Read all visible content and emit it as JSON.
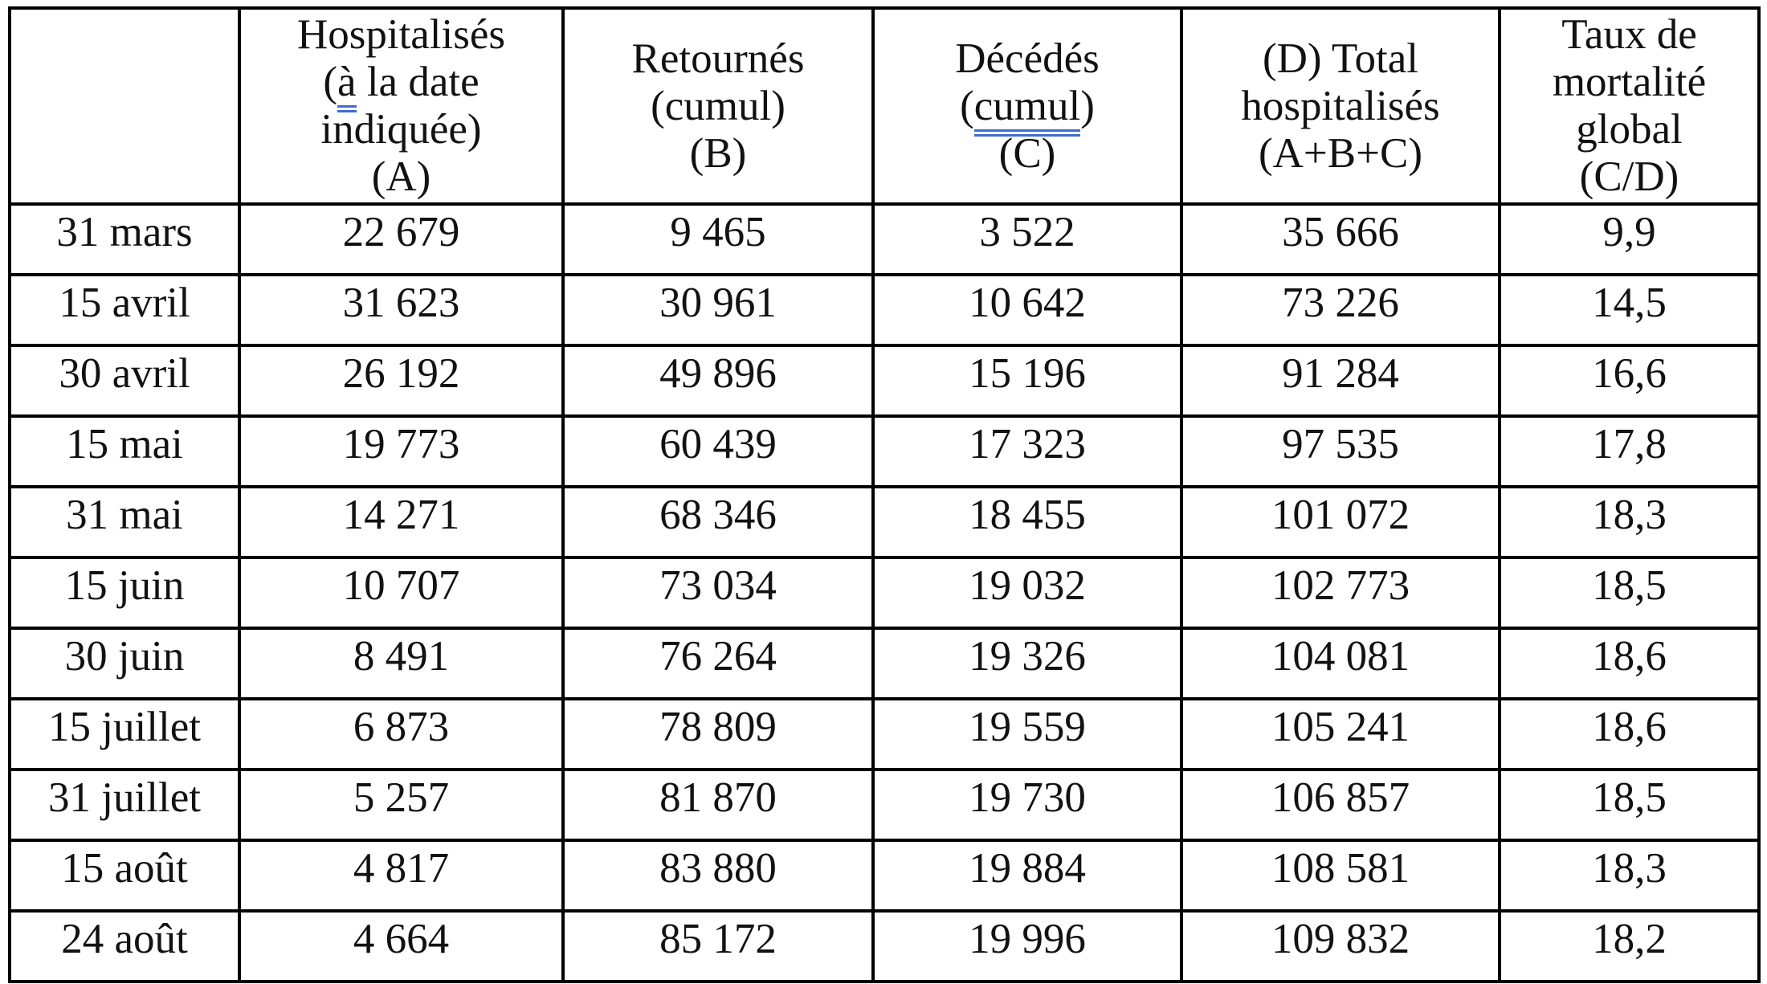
{
  "document": {
    "background_color": "#ffffff",
    "text_color": "#121212",
    "table_border_color": "#000000",
    "grammar_underline_color": "#3f6cd1"
  },
  "table": {
    "headers": [
      {
        "name": "date",
        "lines": []
      },
      {
        "name": "hospitalises-a",
        "lines": [
          [
            {
              "text": "Hospitalisés"
            }
          ],
          [
            {
              "text": "("
            },
            {
              "text": "à",
              "underline": true
            },
            {
              "text": " la date"
            }
          ],
          [
            {
              "text": "indiquée)"
            }
          ],
          [
            {
              "text": "(A)"
            }
          ]
        ]
      },
      {
        "name": "retournes-b",
        "lines": [
          [
            {
              "text": "Retournés"
            }
          ],
          [
            {
              "text": "(cumul)"
            }
          ],
          [
            {
              "text": "(B)"
            }
          ]
        ]
      },
      {
        "name": "decedes-c",
        "lines": [
          [
            {
              "text": "Décédés"
            }
          ],
          [
            {
              "text": "("
            },
            {
              "text": "cumul",
              "underline": true
            },
            {
              "text": ")"
            }
          ],
          [
            {
              "text": "(C)"
            }
          ]
        ]
      },
      {
        "name": "total-hospitalises-d",
        "lines": [
          [
            {
              "text": "(D) Total"
            }
          ],
          [
            {
              "text": "hospitalisés"
            }
          ],
          [
            {
              "text": "(A+B+C)"
            }
          ]
        ]
      },
      {
        "name": "taux-mortalite",
        "lines": [
          [
            {
              "text": "Taux de"
            }
          ],
          [
            {
              "text": "mortalité"
            }
          ],
          [
            {
              "text": "global"
            }
          ],
          [
            {
              "text": "(C/D)"
            }
          ]
        ]
      }
    ],
    "rows": [
      [
        "31 mars",
        "22 679",
        "9 465",
        "3 522",
        "35 666",
        "9,9"
      ],
      [
        "15 avril",
        "31 623",
        "30 961",
        "10 642",
        "73 226",
        "14,5"
      ],
      [
        "30 avril",
        "26 192",
        "49 896",
        "15 196",
        "91 284",
        "16,6"
      ],
      [
        "15 mai",
        "19 773",
        "60 439",
        "17 323",
        "97 535",
        "17,8"
      ],
      [
        "31 mai",
        "14 271",
        "68 346",
        "18 455",
        "101 072",
        "18,3"
      ],
      [
        "15 juin",
        "10 707",
        "73 034",
        "19 032",
        "102 773",
        "18,5"
      ],
      [
        "30 juin",
        "8 491",
        "76 264",
        "19 326",
        "104 081",
        "18,6"
      ],
      [
        "15 juillet",
        "6 873",
        "78 809",
        "19 559",
        "105 241",
        "18,6"
      ],
      [
        "31 juillet",
        "5 257",
        "81 870",
        "19 730",
        "106 857",
        "18,5"
      ],
      [
        "15 août",
        "4 817",
        "83 880",
        "19 884",
        "108 581",
        "18,3"
      ],
      [
        "24 août",
        "4 664",
        "85 172",
        "19 996",
        "109 832",
        "18,2"
      ]
    ]
  }
}
